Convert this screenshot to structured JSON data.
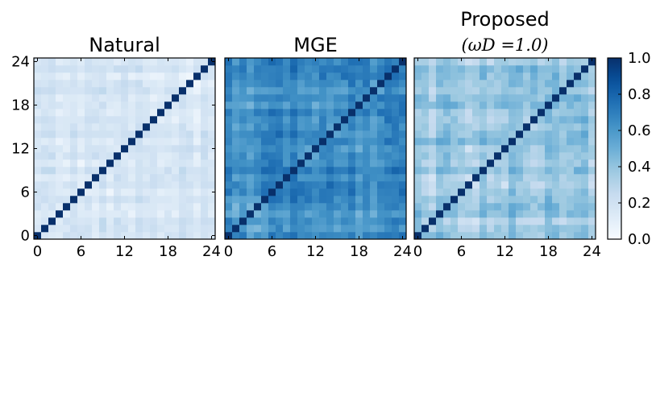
{
  "chart_data": {
    "type": "heatmap",
    "colormap": "Blues",
    "size": 25,
    "diagonal_value": 1.0,
    "xticks": [
      "0",
      "6",
      "12",
      "18",
      "24"
    ],
    "yticks": [
      "0",
      "6",
      "12",
      "18",
      "24"
    ],
    "colorbar": {
      "range": [
        0.0,
        1.0
      ],
      "ticks": [
        "0.0",
        "0.2",
        "0.4",
        "0.6",
        "0.8",
        "1.0"
      ]
    },
    "panels": [
      {
        "title": "Natural",
        "subtitle": "",
        "level": 0.16,
        "spread": 0.1
      },
      {
        "title": "MGE",
        "subtitle": "",
        "level": 0.62,
        "spread": 0.16
      },
      {
        "title": "Proposed",
        "subtitle": "(ωD =1.0)",
        "level": 0.36,
        "spread": 0.15
      }
    ]
  }
}
